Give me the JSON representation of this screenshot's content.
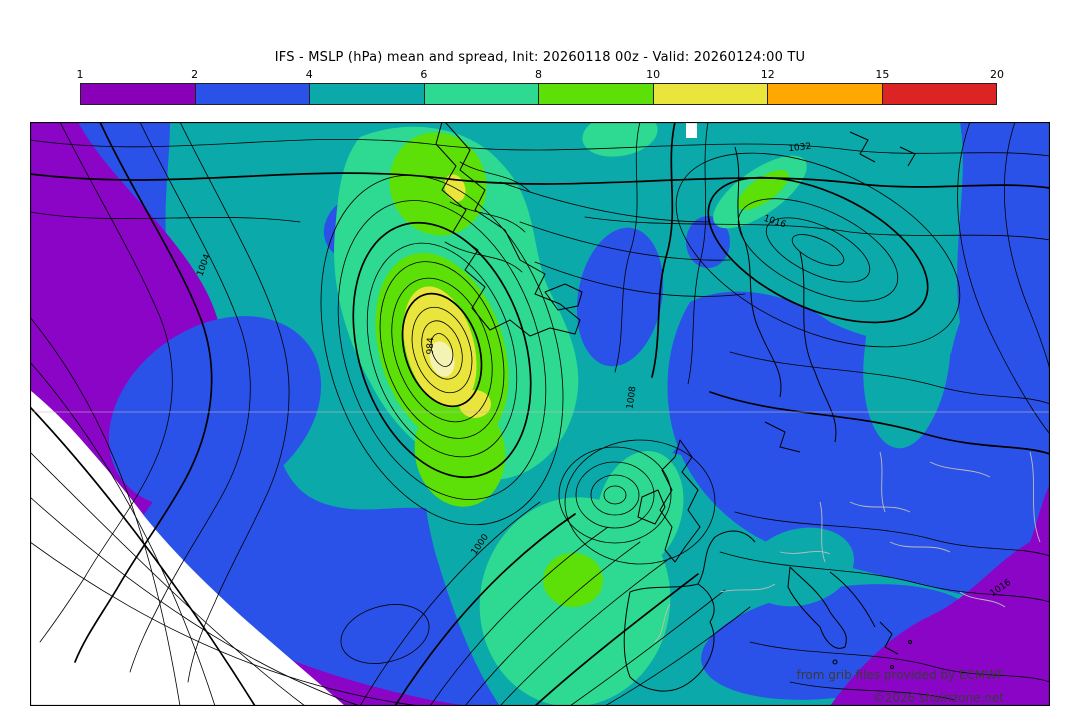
{
  "title": "IFS - MSLP (hPa) mean and spread, Init: 20260118 00z - Valid: 20260124:00 TU",
  "colorbar": {
    "tick_labels": [
      "1",
      "2",
      "4",
      "6",
      "8",
      "10",
      "12",
      "15",
      "20"
    ],
    "segment_colors": [
      "#8A00B8",
      "#2B52E8",
      "#0BA9A9",
      "#2ED992",
      "#5CE007",
      "#EAE53C",
      "#FFA802",
      "#DC2425"
    ]
  },
  "map": {
    "isobar_labels": [
      {
        "text": "984"
      },
      {
        "text": "1004"
      },
      {
        "text": "1008"
      },
      {
        "text": "1000"
      },
      {
        "text": "1016"
      },
      {
        "text": "1032"
      },
      {
        "text": "1016"
      }
    ],
    "credits_line1": "from grib files provided by ECMWF",
    "credits_line2": "©2026 shairizone.net"
  },
  "chart_data": {
    "type": "heatmap",
    "title": "IFS - MSLP (hPa) mean and spread, Init: 20260118 00z - Valid: 20260124:00 TU",
    "quantity": "Mean sea level pressure: ensemble mean shown as black isobars (hPa), ensemble spread shown as shading (hPa)",
    "region": "North Atlantic and Europe",
    "colorbar_levels": [
      1,
      2,
      4,
      6,
      8,
      10,
      12,
      15,
      20
    ],
    "colorbar_colors": [
      "#8A00B8",
      "#2B52E8",
      "#0BA9A9",
      "#2ED992",
      "#5CE007",
      "#EAE53C",
      "#FFA802",
      "#DC2425"
    ],
    "isobar_labels_visible": [
      984,
      1000,
      1004,
      1008,
      1016,
      1032
    ],
    "features": [
      "Deep cyclone with tightly packed closed isobars (central value ~984 hPa) in the central North Atlantic with spread maximum of 10-12 hPa (yellow core)",
      "Secondary spread maximum of 8-12 hPa (green/yellow) southwest of Iberia near a weaker low",
      "Broad 2-6 hPa spread (blue/teal) over Europe, Scandinavia and the eastern Atlantic",
      "Spread below 2 hPa (purple) along the western/southwestern edge and in the southeastern corner; below 1 hPa (white, unshaded) in the far southwest with smooth widely spaced isobars",
      "Anticyclonic ridge (~1032 hPa) with closed contours north of Scandinavia",
      "Small white data gap notch at top centre of the panel"
    ],
    "legend_position": "top horizontal colorbar",
    "grid": "single faint latitude line across the map"
  }
}
